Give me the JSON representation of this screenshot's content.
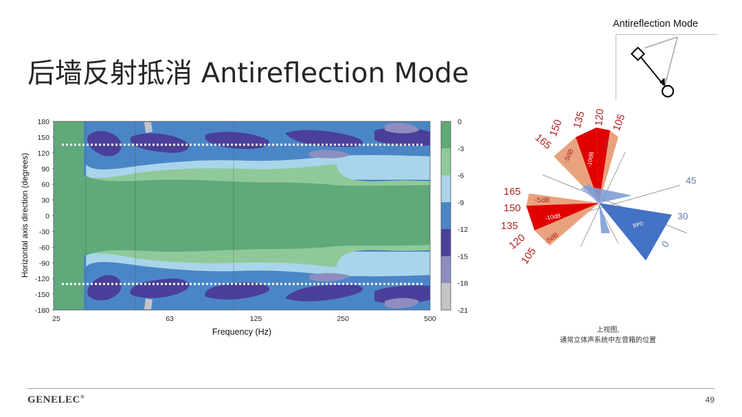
{
  "slide": {
    "title": "后墙反射抵消  Antireflection Mode",
    "brand": "GENELEC",
    "brand_mark": "®",
    "page_number": "49"
  },
  "inset": {
    "label": "Antireflection Mode"
  },
  "caption": {
    "line1": "上视图,",
    "line2": "通常立体声系统中左音箱的位置"
  },
  "chart_data": {
    "type": "heatmap",
    "xlabel": "Frequency (Hz)",
    "ylabel": "Horizontal axis direction (degrees)",
    "x_ticks": [
      "25",
      "63",
      "125",
      "250",
      "500"
    ],
    "y_ticks": [
      "180",
      "150",
      "120",
      "90",
      "60",
      "30",
      "0",
      "-30",
      "-60",
      "-90",
      "-120",
      "-150",
      "-180"
    ],
    "ylim": [
      -180,
      180
    ],
    "colorbar": {
      "ticks": [
        "0",
        "-3",
        "-6",
        "-9",
        "-12",
        "-15",
        "-18",
        "-21"
      ],
      "colors": [
        "#5fa97a",
        "#8fc99a",
        "#a9d4ea",
        "#4a86c6",
        "#4a3f9a",
        "#8d8dbf",
        "#c4c4c4"
      ]
    },
    "reference_lines": [
      135,
      -135
    ],
    "grid": true
  },
  "polar": {
    "directions": [
      "105",
      "120",
      "135",
      "150",
      "165"
    ],
    "wedge_labels": {
      "minus5": "-5dB",
      "minus10": "-10dB",
      "zero": "BP0"
    },
    "axis_labels": {
      "a45": "45",
      "a30": "30",
      "a0": "0"
    },
    "colors": {
      "red": "#e00000",
      "salmon": "#e9a27e",
      "blue": "#4472c4",
      "lightblue": "#7f9fd6",
      "labelred": "#b22222",
      "labelblue": "#6b7fb0"
    }
  }
}
